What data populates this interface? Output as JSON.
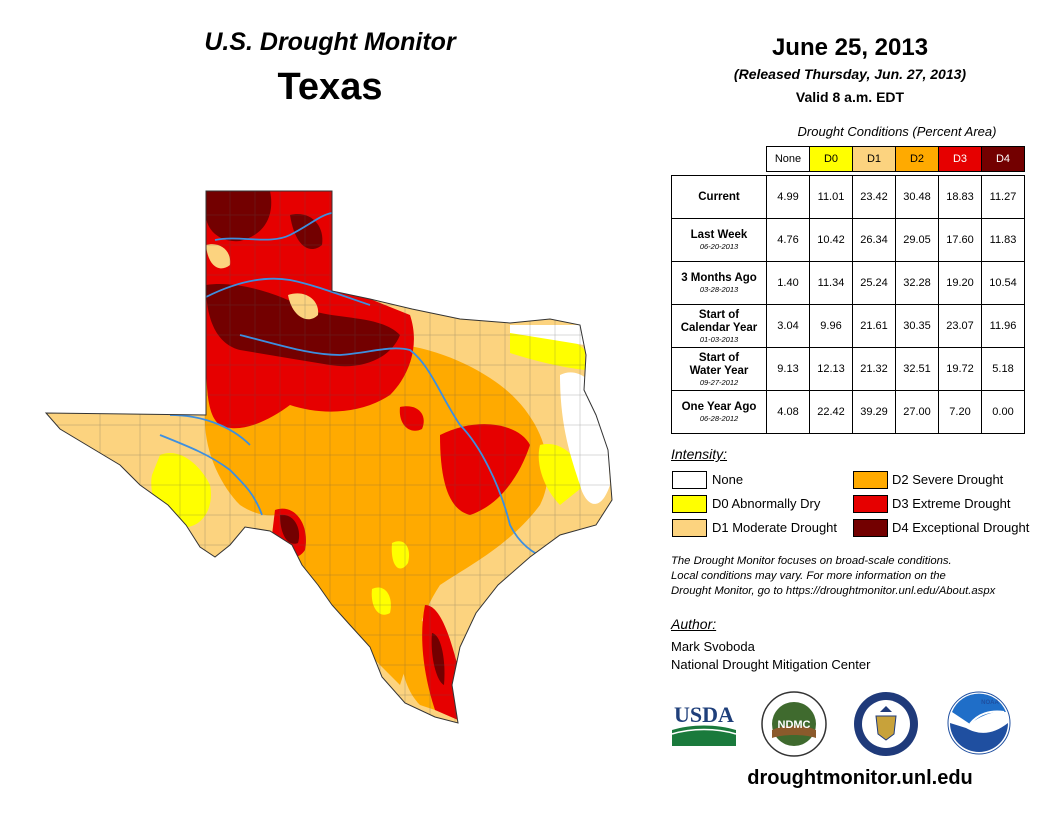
{
  "header": {
    "title": "U.S. Drought Monitor",
    "region": "Texas",
    "date": "June 25, 2013",
    "released": "(Released Thursday, Jun. 27, 2013)",
    "valid": "Valid 8 a.m. EDT"
  },
  "table": {
    "caption": "Drought Conditions (Percent Area)",
    "columns": [
      "None",
      "D0",
      "D1",
      "D2",
      "D3",
      "D4"
    ],
    "rows": [
      {
        "label": "Current",
        "label2": "",
        "date": "",
        "values": [
          "4.99",
          "11.01",
          "23.42",
          "30.48",
          "18.83",
          "11.27"
        ]
      },
      {
        "label": "Last Week",
        "label2": "",
        "date": "06-20-2013",
        "values": [
          "4.76",
          "10.42",
          "26.34",
          "29.05",
          "17.60",
          "11.83"
        ]
      },
      {
        "label": "3 Months Ago",
        "label2": "",
        "date": "03-28-2013",
        "values": [
          "1.40",
          "11.34",
          "25.24",
          "32.28",
          "19.20",
          "10.54"
        ]
      },
      {
        "label": "Start of",
        "label2": "Calendar Year",
        "date": "01-03-2013",
        "values": [
          "3.04",
          "9.96",
          "21.61",
          "30.35",
          "23.07",
          "11.96"
        ]
      },
      {
        "label": "Start of",
        "label2": "Water Year",
        "date": "09-27-2012",
        "values": [
          "9.13",
          "12.13",
          "21.32",
          "32.51",
          "19.72",
          "5.18"
        ]
      },
      {
        "label": "One Year Ago",
        "label2": "",
        "date": "06-28-2012",
        "values": [
          "4.08",
          "22.42",
          "39.29",
          "27.00",
          "7.20",
          "0.00"
        ]
      }
    ]
  },
  "legend": {
    "title": "Intensity:",
    "items": [
      {
        "code": "none",
        "label": "None",
        "color": "#ffffff"
      },
      {
        "code": "d0",
        "label": "D0 Abnormally Dry",
        "color": "#ffff00"
      },
      {
        "code": "d1",
        "label": "D1 Moderate Drought",
        "color": "#fcd37f"
      },
      {
        "code": "d2",
        "label": "D2 Severe Drought",
        "color": "#ffaa00"
      },
      {
        "code": "d3",
        "label": "D3 Extreme Drought",
        "color": "#e60000"
      },
      {
        "code": "d4",
        "label": "D4 Exceptional Drought",
        "color": "#730000"
      }
    ]
  },
  "note": {
    "line1": "The Drought Monitor focuses on broad-scale conditions.",
    "line2": "Local conditions may vary. For more information on the",
    "line3": "Drought Monitor, go to https://droughtmonitor.unl.edu/About.aspx"
  },
  "author": {
    "title": "Author:",
    "name": "Mark Svoboda",
    "org": "National Drought Mitigation Center"
  },
  "logos": {
    "usda": "USDA",
    "ndmc": "NDMC",
    "noaa": "NOAA"
  },
  "footer": {
    "url": "droughtmonitor.unl.edu"
  },
  "colors": {
    "d0": "#ffff00",
    "d1": "#fcd37f",
    "d2": "#ffaa00",
    "d3": "#e60000",
    "d4": "#730000",
    "river": "#3d8fe0"
  }
}
